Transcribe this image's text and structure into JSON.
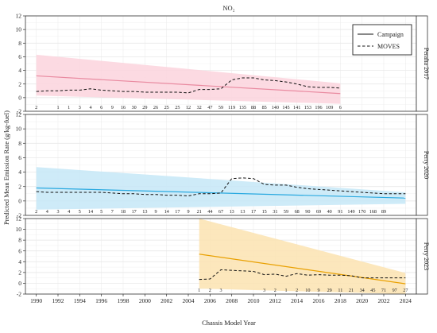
{
  "chart_data": {
    "type": "line",
    "title": "NO₂",
    "xlabel": "Chassis Model Year",
    "ylabel": "Predicted Mean Emission Rate (g/kg-fuel)",
    "xlim": [
      1989,
      2025
    ],
    "ylim": [
      -2,
      12
    ],
    "x_ticks": [
      1990,
      1992,
      1994,
      1996,
      1998,
      2000,
      2002,
      2004,
      2006,
      2008,
      2010,
      2012,
      2014,
      2016,
      2018,
      2020,
      2022,
      2024
    ],
    "y_ticks": [
      -2,
      0,
      2,
      4,
      6,
      8,
      10,
      12
    ],
    "grid": true,
    "legend": {
      "position": "top-right",
      "items": [
        {
          "label": "Campaign",
          "style": "solid"
        },
        {
          "label": "MOVES",
          "style": "dashed"
        }
      ]
    },
    "panels": [
      {
        "strip_label": "Peralta 2017",
        "color": "#e98aa0",
        "band_color": "#fbd3dd",
        "campaign": {
          "x": [
            1990,
            2018
          ],
          "y": [
            3.2,
            0.6
          ],
          "lower": [
            0.3,
            -0.9
          ],
          "upper": [
            6.3,
            2.1
          ]
        },
        "moves": {
          "x": [
            1990,
            1991,
            1992,
            1993,
            1994,
            1995,
            1996,
            1997,
            1998,
            1999,
            2000,
            2001,
            2002,
            2003,
            2004,
            2005,
            2006,
            2007,
            2008,
            2009,
            2010,
            2011,
            2012,
            2013,
            2014,
            2015,
            2016,
            2017,
            2018
          ],
          "y": [
            0.9,
            1.0,
            1.0,
            1.1,
            1.1,
            1.3,
            1.1,
            1.0,
            0.9,
            0.9,
            0.8,
            0.8,
            0.8,
            0.8,
            0.7,
            1.2,
            1.2,
            1.3,
            2.6,
            2.9,
            2.9,
            2.6,
            2.5,
            2.3,
            2.0,
            1.6,
            1.5,
            1.5,
            1.4
          ]
        },
        "counts": [
          {
            "x": 1990,
            "label": "2"
          },
          {
            "x": 1992,
            "label": "1"
          },
          {
            "x": 1993,
            "label": "1"
          },
          {
            "x": 1994,
            "label": "3"
          },
          {
            "x": 1995,
            "label": "4"
          },
          {
            "x": 1996,
            "label": "6"
          },
          {
            "x": 1997,
            "label": "9"
          },
          {
            "x": 1998,
            "label": "16"
          },
          {
            "x": 1999,
            "label": "30"
          },
          {
            "x": 2000,
            "label": "29"
          },
          {
            "x": 2001,
            "label": "26"
          },
          {
            "x": 2002,
            "label": "25"
          },
          {
            "x": 2003,
            "label": "25"
          },
          {
            "x": 2004,
            "label": "12"
          },
          {
            "x": 2005,
            "label": "32"
          },
          {
            "x": 2006,
            "label": "47"
          },
          {
            "x": 2007,
            "label": "59"
          },
          {
            "x": 2008,
            "label": "119"
          },
          {
            "x": 2009,
            "label": "135"
          },
          {
            "x": 2010,
            "label": "88"
          },
          {
            "x": 2011,
            "label": "85"
          },
          {
            "x": 2012,
            "label": "140"
          },
          {
            "x": 2013,
            "label": "145"
          },
          {
            "x": 2014,
            "label": "141"
          },
          {
            "x": 2015,
            "label": "153"
          },
          {
            "x": 2016,
            "label": "196"
          },
          {
            "x": 2017,
            "label": "109"
          },
          {
            "x": 2018,
            "label": "6"
          }
        ]
      },
      {
        "strip_label": "Perry 2020",
        "color": "#29a9e0",
        "band_color": "#c6e7f7",
        "campaign": {
          "x": [
            1990,
            2024
          ],
          "y": [
            1.8,
            0.4
          ],
          "lower": [
            -1.2,
            -0.4
          ],
          "upper": [
            4.7,
            1.2
          ]
        },
        "moves": {
          "x": [
            1990,
            1991,
            1992,
            1993,
            1994,
            1995,
            1996,
            1997,
            1998,
            1999,
            2000,
            2001,
            2002,
            2003,
            2004,
            2005,
            2006,
            2007,
            2008,
            2009,
            2010,
            2011,
            2012,
            2013,
            2014,
            2015,
            2016,
            2017,
            2018,
            2019,
            2020,
            2021,
            2022,
            2023,
            2024
          ],
          "y": [
            1.3,
            1.2,
            1.2,
            1.2,
            1.2,
            1.2,
            1.2,
            1.1,
            1.0,
            1.0,
            0.9,
            0.9,
            0.8,
            0.8,
            0.7,
            1.0,
            1.0,
            1.1,
            3.1,
            3.2,
            3.1,
            2.3,
            2.2,
            2.2,
            1.9,
            1.7,
            1.6,
            1.5,
            1.4,
            1.3,
            1.2,
            1.1,
            1.0,
            1.0,
            1.0
          ]
        },
        "counts": [
          {
            "x": 1990,
            "label": "2"
          },
          {
            "x": 1991,
            "label": "4"
          },
          {
            "x": 1992,
            "label": "3"
          },
          {
            "x": 1993,
            "label": "4"
          },
          {
            "x": 1994,
            "label": "5"
          },
          {
            "x": 1995,
            "label": "14"
          },
          {
            "x": 1996,
            "label": "5"
          },
          {
            "x": 1997,
            "label": "7"
          },
          {
            "x": 1998,
            "label": "18"
          },
          {
            "x": 1999,
            "label": "17"
          },
          {
            "x": 2000,
            "label": "13"
          },
          {
            "x": 2001,
            "label": "9"
          },
          {
            "x": 2002,
            "label": "14"
          },
          {
            "x": 2003,
            "label": "17"
          },
          {
            "x": 2004,
            "label": "9"
          },
          {
            "x": 2005,
            "label": "21"
          },
          {
            "x": 2006,
            "label": "44"
          },
          {
            "x": 2007,
            "label": "67"
          },
          {
            "x": 2008,
            "label": "13"
          },
          {
            "x": 2009,
            "label": "13"
          },
          {
            "x": 2010,
            "label": "17"
          },
          {
            "x": 2011,
            "label": "15"
          },
          {
            "x": 2012,
            "label": "31"
          },
          {
            "x": 2013,
            "label": "59"
          },
          {
            "x": 2014,
            "label": "68"
          },
          {
            "x": 2015,
            "label": "90"
          },
          {
            "x": 2016,
            "label": "69"
          },
          {
            "x": 2017,
            "label": "40"
          },
          {
            "x": 2018,
            "label": "91"
          },
          {
            "x": 2019,
            "label": "149"
          },
          {
            "x": 2020,
            "label": "170"
          },
          {
            "x": 2021,
            "label": "168"
          },
          {
            "x": 2022,
            "label": "89"
          }
        ]
      },
      {
        "strip_label": "Perry 2023",
        "color": "#e9a000",
        "band_color": "#fce3b0",
        "campaign": {
          "x": [
            2005,
            2024
          ],
          "y": [
            5.4,
            -0.1
          ],
          "lower": [
            -1.0,
            -2.0
          ],
          "upper": [
            12.0,
            1.9
          ]
        },
        "moves": {
          "x": [
            2005,
            2006,
            2007,
            2008,
            2009,
            2010,
            2011,
            2012,
            2013,
            2014,
            2015,
            2016,
            2017,
            2018,
            2019,
            2020,
            2021,
            2022,
            2023,
            2024
          ],
          "y": [
            0.7,
            0.8,
            2.5,
            2.4,
            2.3,
            2.2,
            1.6,
            1.7,
            1.3,
            1.8,
            1.5,
            1.6,
            1.5,
            1.5,
            1.4,
            1.0,
            1.0,
            1.0,
            1.0,
            1.0
          ]
        },
        "counts": [
          {
            "x": 2005,
            "label": "1"
          },
          {
            "x": 2006,
            "label": "2"
          },
          {
            "x": 2007,
            "label": "3"
          },
          {
            "x": 2011,
            "label": "3"
          },
          {
            "x": 2012,
            "label": "2"
          },
          {
            "x": 2013,
            "label": "1"
          },
          {
            "x": 2014,
            "label": "2"
          },
          {
            "x": 2015,
            "label": "10"
          },
          {
            "x": 2016,
            "label": "9"
          },
          {
            "x": 2017,
            "label": "29"
          },
          {
            "x": 2018,
            "label": "11"
          },
          {
            "x": 2019,
            "label": "21"
          },
          {
            "x": 2020,
            "label": "34"
          },
          {
            "x": 2021,
            "label": "45"
          },
          {
            "x": 2022,
            "label": "71"
          },
          {
            "x": 2023,
            "label": "97"
          },
          {
            "x": 2024,
            "label": "27"
          }
        ]
      }
    ]
  }
}
